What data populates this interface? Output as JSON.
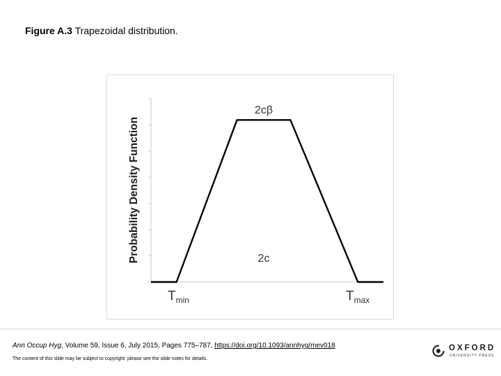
{
  "figure": {
    "label": "Figure A.3",
    "caption": "Trapezoidal distribution."
  },
  "chart_data": {
    "type": "line",
    "ylabel": "Probability Density Function",
    "xlabel": "",
    "grid": false,
    "points": [
      {
        "x": 0.0,
        "y": 0.0
      },
      {
        "x": 0.11,
        "y": 0.0
      },
      {
        "x": 0.37,
        "y": 1.0
      },
      {
        "x": 0.6,
        "y": 1.0
      },
      {
        "x": 0.89,
        "y": 0.0
      },
      {
        "x": 1.0,
        "y": 0.0
      }
    ],
    "xlim": [
      0,
      1
    ],
    "ylim": [
      0,
      1.13
    ],
    "series_color": "#000000",
    "annotations": {
      "peak_label": "2cβ",
      "width_label": "2c",
      "tmin_main": "T",
      "tmin_sub": "min",
      "tmax_main": "T",
      "tmax_sub": "max"
    }
  },
  "footer": {
    "journal": "Ann Occup Hyg",
    "citation_rest": ", Volume 59, Issue 6, July 2015, Pages 775–787,",
    "doi": "https://doi.org/10.1093/annhyg/mev018",
    "notice": "The content of this slide may be subject to copyright: please see the slide notes for details.",
    "logo_word": "OXFORD",
    "logo_sub": "UNIVERSITY PRESS"
  }
}
